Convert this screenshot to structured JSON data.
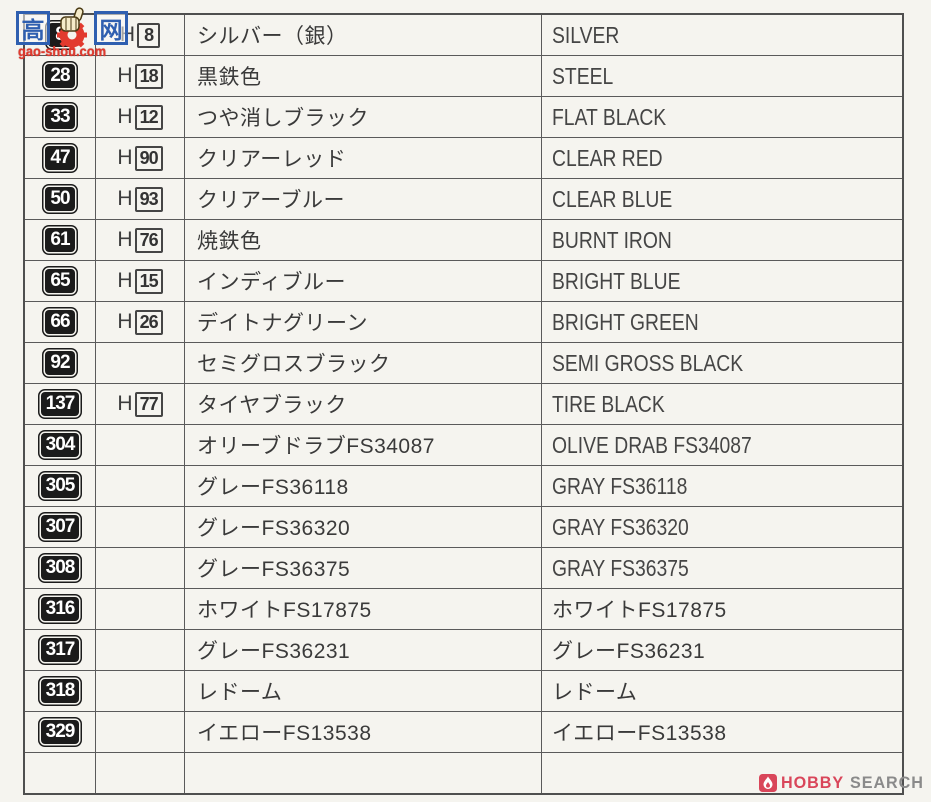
{
  "page": {
    "background": "#f5f4ef",
    "line_color": "#5a5a5a",
    "text_color": "#3c3c3c"
  },
  "watermark": {
    "char_left": "高",
    "char_right": "网",
    "domain": "gao-shou.com",
    "blue": "#2f5fb0",
    "red": "#e23a2e"
  },
  "logo": {
    "brand_primary": "HOBBY",
    "brand_secondary": "SEARCH",
    "red": "#d9465a",
    "gray": "#8a8a8a"
  },
  "table": {
    "columns": [
      "paint-number",
      "aqueous-h-number",
      "japanese-name",
      "english-name"
    ],
    "h_prefix": "H",
    "rows": [
      {
        "num": "8",
        "h": "8",
        "jp": "シルバー（銀）",
        "en": "SILVER"
      },
      {
        "num": "28",
        "h": "18",
        "jp": "黒鉄色",
        "en": "STEEL"
      },
      {
        "num": "33",
        "h": "12",
        "jp": "つや消しブラック",
        "en": "FLAT BLACK"
      },
      {
        "num": "47",
        "h": "90",
        "jp": "クリアーレッド",
        "en": "CLEAR RED"
      },
      {
        "num": "50",
        "h": "93",
        "jp": "クリアーブルー",
        "en": "CLEAR BLUE"
      },
      {
        "num": "61",
        "h": "76",
        "jp": "焼鉄色",
        "en": "BURNT IRON"
      },
      {
        "num": "65",
        "h": "15",
        "jp": "インディブルー",
        "en": "BRIGHT BLUE"
      },
      {
        "num": "66",
        "h": "26",
        "jp": "デイトナグリーン",
        "en": "BRIGHT GREEN"
      },
      {
        "num": "92",
        "h": "",
        "jp": "セミグロスブラック",
        "en": "SEMI GROSS BLACK"
      },
      {
        "num": "137",
        "h": "77",
        "jp": "タイヤブラック",
        "en": "TIRE BLACK"
      },
      {
        "num": "304",
        "h": "",
        "jp": "オリーブドラブFS34087",
        "en": "OLIVE DRAB FS34087"
      },
      {
        "num": "305",
        "h": "",
        "jp": "グレーFS36118",
        "en": "GRAY FS36118"
      },
      {
        "num": "307",
        "h": "",
        "jp": "グレーFS36320",
        "en": "GRAY FS36320"
      },
      {
        "num": "308",
        "h": "",
        "jp": "グレーFS36375",
        "en": "GRAY FS36375"
      },
      {
        "num": "316",
        "h": "",
        "jp": "ホワイトFS17875",
        "en": "ホワイトFS17875",
        "en_is_jp": true
      },
      {
        "num": "317",
        "h": "",
        "jp": "グレーFS36231",
        "en": "グレーFS36231",
        "en_is_jp": true
      },
      {
        "num": "318",
        "h": "",
        "jp": "レドーム",
        "en": "レドーム",
        "en_is_jp": true
      },
      {
        "num": "329",
        "h": "",
        "jp": "イエローFS13538",
        "en": "イエローFS13538",
        "en_is_jp": true
      },
      {
        "num": "",
        "h": "",
        "jp": "",
        "en": ""
      }
    ]
  }
}
